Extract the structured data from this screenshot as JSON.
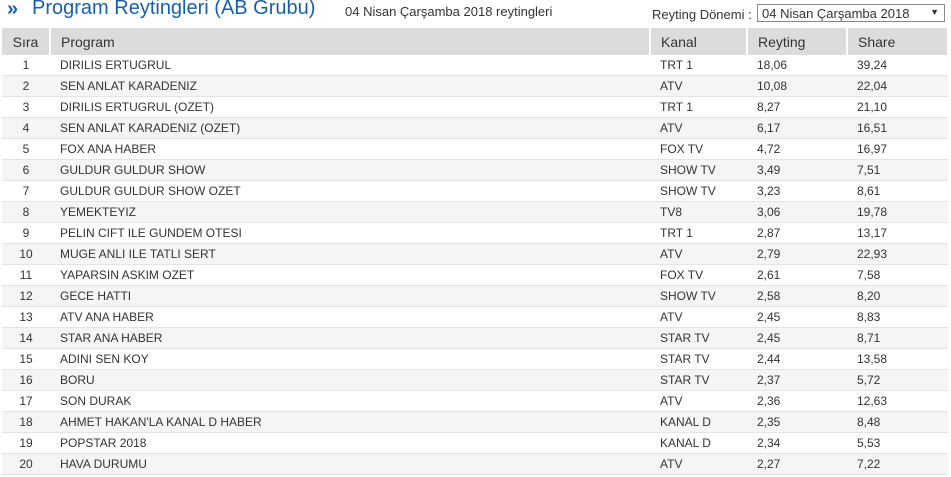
{
  "header": {
    "title": "Program Reytingleri (AB Grubu)",
    "subtitle": "04 Nisan Çarşamba 2018 reytingleri",
    "period_label": "Reyting Dönemi :",
    "period_value": "04 Nisan Çarşamba 2018"
  },
  "table": {
    "columns": [
      "Sıra",
      "Program",
      "Kanal",
      "Reyting",
      "Share"
    ],
    "rows": [
      [
        "1",
        "DIRILIS ERTUGRUL",
        "TRT 1",
        "18,06",
        "39,24"
      ],
      [
        "2",
        "SEN ANLAT KARADENIZ",
        "ATV",
        "10,08",
        "22,04"
      ],
      [
        "3",
        "DIRILIS ERTUGRUL (OZET)",
        "TRT 1",
        "8,27",
        "21,10"
      ],
      [
        "4",
        "SEN ANLAT KARADENIZ (OZET)",
        "ATV",
        "6,17",
        "16,51"
      ],
      [
        "5",
        "FOX ANA HABER",
        "FOX TV",
        "4,72",
        "16,97"
      ],
      [
        "6",
        "GULDUR GULDUR SHOW",
        "SHOW TV",
        "3,49",
        "7,51"
      ],
      [
        "7",
        "GULDUR GULDUR SHOW OZET",
        "SHOW TV",
        "3,23",
        "8,61"
      ],
      [
        "8",
        "YEMEKTEYIZ",
        "TV8",
        "3,06",
        "19,78"
      ],
      [
        "9",
        "PELIN CIFT ILE GUNDEM OTESI",
        "TRT 1",
        "2,87",
        "13,17"
      ],
      [
        "10",
        "MUGE ANLI ILE TATLI SERT",
        "ATV",
        "2,79",
        "22,93"
      ],
      [
        "11",
        "YAPARSIN ASKIM OZET",
        "FOX TV",
        "2,61",
        "7,58"
      ],
      [
        "12",
        "GECE HATTI",
        "SHOW TV",
        "2,58",
        "8,20"
      ],
      [
        "13",
        "ATV ANA HABER",
        "ATV",
        "2,45",
        "8,83"
      ],
      [
        "14",
        "STAR ANA HABER",
        "STAR TV",
        "2,45",
        "8,71"
      ],
      [
        "15",
        "ADINI SEN KOY",
        "STAR TV",
        "2,44",
        "13,58"
      ],
      [
        "16",
        "BORU",
        "STAR TV",
        "2,37",
        "5,72"
      ],
      [
        "17",
        "SON DURAK",
        "ATV",
        "2,36",
        "12,63"
      ],
      [
        "18",
        "AHMET HAKAN'LA KANAL D HABER",
        "KANAL D",
        "2,35",
        "8,48"
      ],
      [
        "19",
        "POPSTAR 2018",
        "KANAL D",
        "2,34",
        "5,53"
      ],
      [
        "20",
        "HAVA DURUMU",
        "ATV",
        "2,27",
        "7,22"
      ]
    ]
  }
}
